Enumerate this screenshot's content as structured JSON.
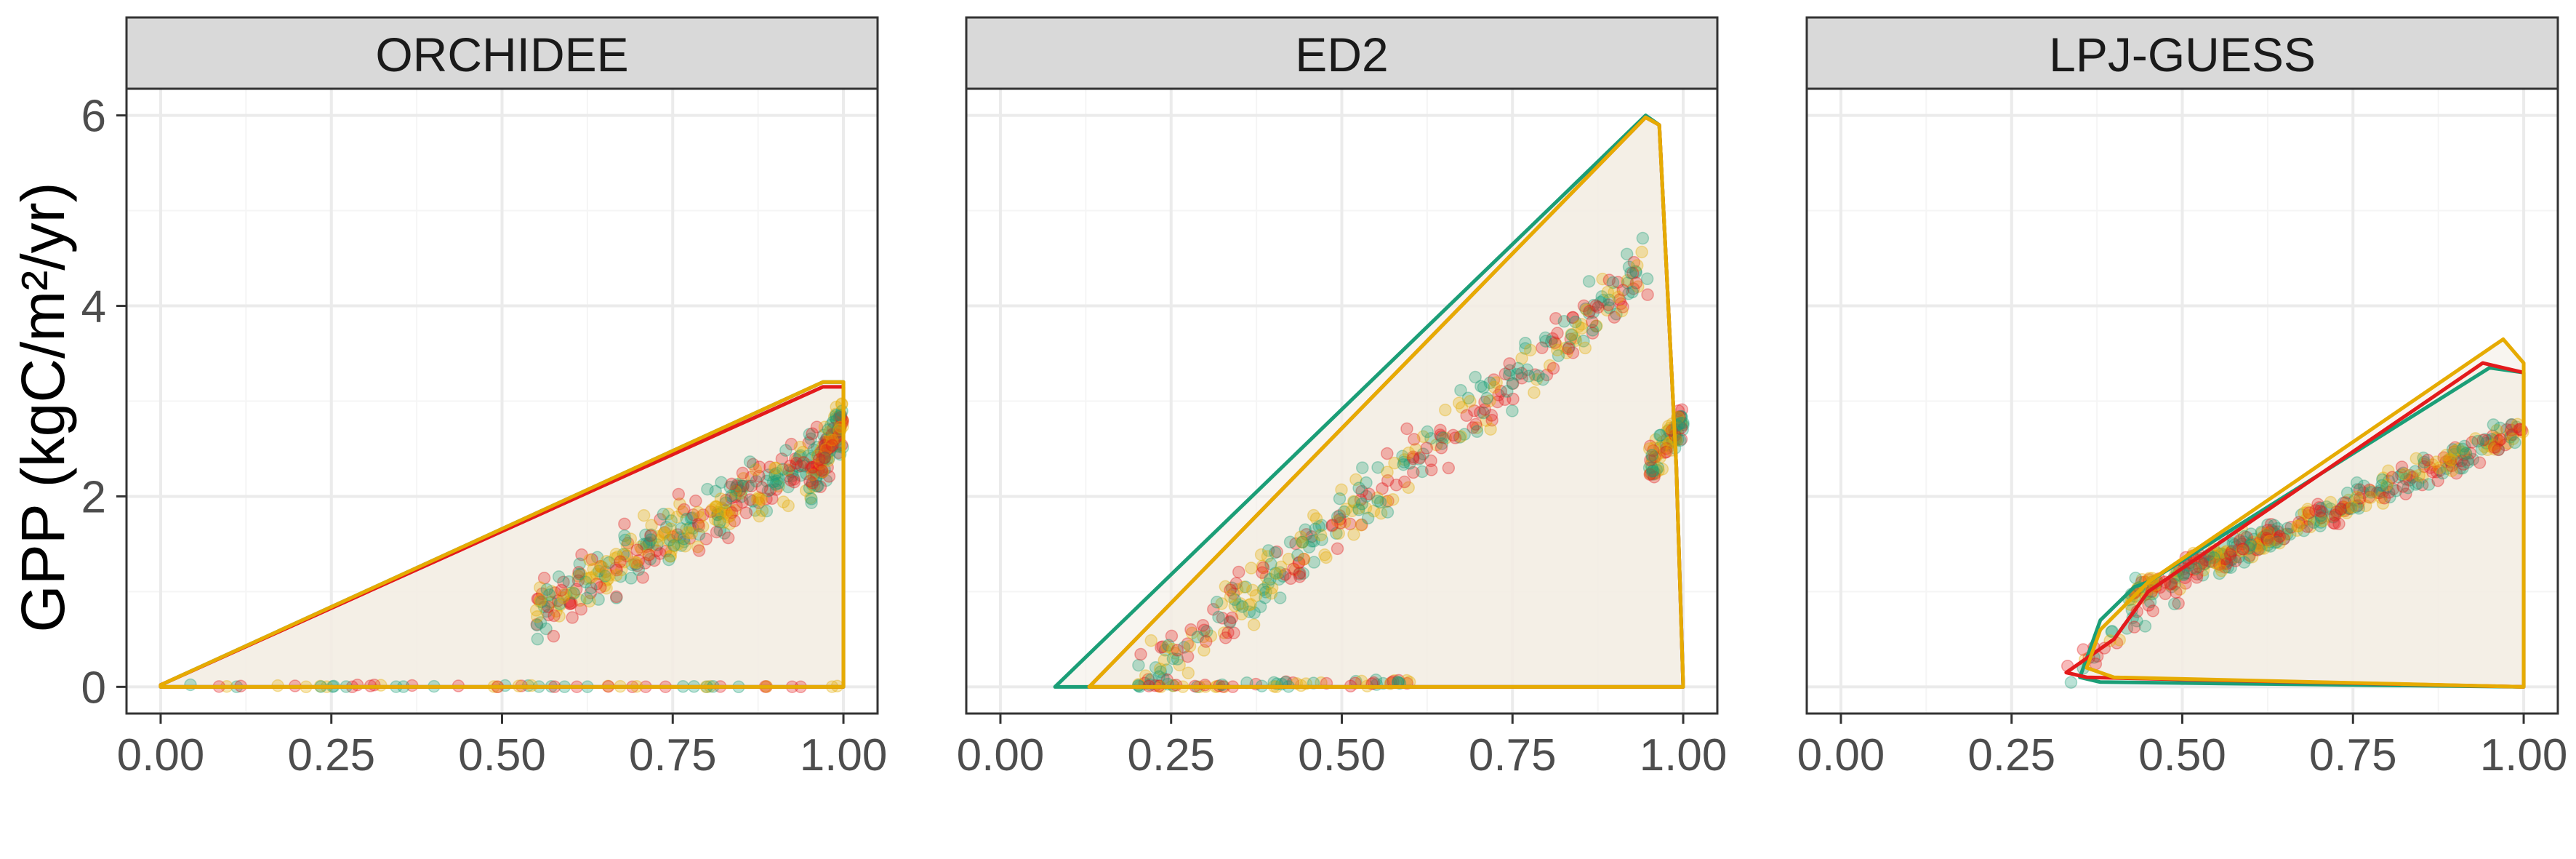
{
  "figure": {
    "ylabel": "GPP (kgC/m²/yr)"
  },
  "colors": {
    "strip_bg": "#d9d9d9",
    "panel_border": "#333333",
    "grid_major": "#ebebeb",
    "grid_minor": "#f5f5f5",
    "hull_fill": "#f3ece4",
    "series_1": "#1b9e77",
    "series_2": "#e31a1c",
    "series_3": "#e6ab02",
    "tick_text": "#4d4d4d"
  },
  "chart_data": [
    {
      "type": "scatter",
      "title": "ORCHIDEE",
      "xlim": [
        -0.05,
        1.05
      ],
      "ylim": [
        -0.28,
        6.28
      ],
      "x_ticks": [
        "0.00",
        "0.25",
        "0.50",
        "0.75",
        "1.00"
      ],
      "y_ticks": [
        "0",
        "2",
        "4",
        "6"
      ],
      "grid": true,
      "series": [
        {
          "color": "#1b9e77",
          "hull": [
            [
              0.0,
              0.0
            ],
            [
              1.0,
              0.0
            ],
            [
              1.0,
              3.2
            ],
            [
              0.97,
              3.2
            ],
            [
              0.0,
              0.02
            ]
          ]
        },
        {
          "color": "#e31a1c",
          "hull": [
            [
              0.0,
              0.0
            ],
            [
              1.0,
              0.0
            ],
            [
              1.0,
              3.15
            ],
            [
              0.97,
              3.15
            ],
            [
              0.0,
              0.02
            ]
          ]
        },
        {
          "color": "#e6ab02",
          "hull": [
            [
              0.0,
              0.0
            ],
            [
              1.0,
              0.0
            ],
            [
              1.0,
              3.2
            ],
            [
              0.97,
              3.2
            ],
            [
              0.0,
              0.02
            ]
          ]
        }
      ],
      "point_clusters": [
        {
          "x_from": 0.0,
          "x_to": 1.0,
          "trend_from": 0.0,
          "trend_to": 0.0,
          "spread": 0.03,
          "n": 60
        },
        {
          "x_from": 0.55,
          "x_to": 1.0,
          "trend_from": 0.8,
          "trend_to": 2.6,
          "spread": 0.45,
          "n": 380
        },
        {
          "x_from": 0.95,
          "x_to": 1.0,
          "trend_from": 2.0,
          "trend_to": 2.9,
          "spread": 0.3,
          "n": 90
        }
      ]
    },
    {
      "type": "scatter",
      "title": "ED2",
      "xlim": [
        -0.05,
        1.05
      ],
      "ylim": [
        -0.28,
        6.28
      ],
      "x_ticks": [
        "0.00",
        "0.25",
        "0.50",
        "0.75",
        "1.00"
      ],
      "y_ticks": [],
      "grid": true,
      "series": [
        {
          "color": "#1b9e77",
          "hull": [
            [
              0.08,
              0.0
            ],
            [
              1.0,
              0.0
            ],
            [
              0.99,
              2.3
            ],
            [
              0.965,
              5.9
            ],
            [
              0.945,
              6.0
            ]
          ]
        },
        {
          "color": "#e31a1c",
          "hull": [
            [
              0.13,
              0.0
            ],
            [
              1.0,
              0.0
            ],
            [
              0.99,
              2.3
            ],
            [
              0.965,
              5.9
            ],
            [
              0.945,
              5.98
            ]
          ]
        },
        {
          "color": "#e6ab02",
          "hull": [
            [
              0.13,
              0.0
            ],
            [
              1.0,
              0.0
            ],
            [
              0.99,
              2.3
            ],
            [
              0.965,
              5.9
            ],
            [
              0.945,
              5.98
            ]
          ]
        }
      ],
      "point_clusters": [
        {
          "x_from": 0.2,
          "x_to": 0.95,
          "trend_from": 0.0,
          "trend_to": 4.4,
          "spread": 0.45,
          "n": 380
        },
        {
          "x_from": 0.2,
          "x_to": 0.6,
          "trend_from": 0.0,
          "trend_to": 0.05,
          "spread": 0.05,
          "n": 60
        },
        {
          "x_from": 0.95,
          "x_to": 1.0,
          "trend_from": 2.3,
          "trend_to": 2.8,
          "spread": 0.35,
          "n": 90
        }
      ]
    },
    {
      "type": "scatter",
      "title": "LPJ-GUESS",
      "xlim": [
        -0.05,
        1.05
      ],
      "ylim": [
        -0.28,
        6.28
      ],
      "x_ticks": [
        "0.00",
        "0.25",
        "0.50",
        "0.75",
        "1.00"
      ],
      "y_ticks": [],
      "grid": true,
      "series": [
        {
          "color": "#1b9e77",
          "hull": [
            [
              0.35,
              0.1
            ],
            [
              0.38,
              0.7
            ],
            [
              0.43,
              1.05
            ],
            [
              0.45,
              1.1
            ],
            [
              0.95,
              3.35
            ],
            [
              1.0,
              3.3
            ],
            [
              1.0,
              0.0
            ],
            [
              0.38,
              0.05
            ]
          ]
        },
        {
          "color": "#e31a1c",
          "hull": [
            [
              0.33,
              0.15
            ],
            [
              0.4,
              0.5
            ],
            [
              0.45,
              1.0
            ],
            [
              0.94,
              3.4
            ],
            [
              1.0,
              3.3
            ],
            [
              1.0,
              0.0
            ],
            [
              0.36,
              0.1
            ]
          ]
        },
        {
          "color": "#e6ab02",
          "hull": [
            [
              0.36,
              0.2
            ],
            [
              0.38,
              0.6
            ],
            [
              0.45,
              1.1
            ],
            [
              0.97,
              3.65
            ],
            [
              1.0,
              3.4
            ],
            [
              1.0,
              0.0
            ],
            [
              0.4,
              0.1
            ]
          ]
        }
      ],
      "point_clusters": [
        {
          "x_from": 0.42,
          "x_to": 1.0,
          "trend_from": 0.95,
          "trend_to": 2.7,
          "spread": 0.22,
          "n": 420
        },
        {
          "x_from": 0.33,
          "x_to": 0.5,
          "trend_from": 0.1,
          "trend_to": 1.0,
          "spread": 0.25,
          "n": 30
        }
      ]
    }
  ]
}
